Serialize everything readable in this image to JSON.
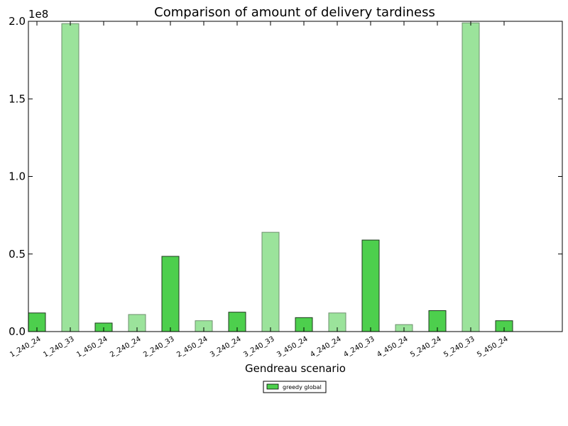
{
  "chart_data": {
    "type": "bar",
    "title": "Comparison of amount of delivery tardiness",
    "xlabel": "Gendreau scenario",
    "ylabel": "",
    "offset_label": "1e8",
    "scale": 100000000,
    "ylim": [
      0,
      2.0
    ],
    "yticks": [
      "0.0",
      "0.5",
      "1.0",
      "1.5",
      "2.0"
    ],
    "categories": [
      "1_240_24",
      "1_240_33",
      "1_450_24",
      "2_240_24",
      "2_240_33",
      "2_450_24",
      "3_240_24",
      "3_240_33",
      "3_450_24",
      "4_240_24",
      "4_240_33",
      "4_450_24",
      "5_240_24",
      "5_240_33",
      "5_450_24"
    ],
    "values": [
      0.12,
      1.985,
      0.055,
      0.11,
      0.485,
      0.07,
      0.125,
      0.64,
      0.09,
      0.12,
      0.59,
      0.045,
      0.135,
      1.99,
      0.07
    ],
    "series": [
      {
        "name": "greedy global",
        "color": "#4dcf4d",
        "values": [
          0.12,
          1.985,
          0.055,
          0.11,
          0.485,
          0.07,
          0.125,
          0.64,
          0.09,
          0.12,
          0.59,
          0.045,
          0.135,
          1.99,
          0.07
        ]
      }
    ],
    "bar_colors": [
      "#4dcf4d",
      "#9be39b",
      "#4dcf4d",
      "#9be39b",
      "#4dcf4d",
      "#9be39b",
      "#4dcf4d",
      "#9be39b",
      "#4dcf4d",
      "#9be39b",
      "#4dcf4d",
      "#9be39b",
      "#4dcf4d",
      "#9be39b",
      "#4dcf4d"
    ],
    "grid": false,
    "legend": {
      "placement": "bottom-center",
      "entries": [
        "greedy global"
      ]
    }
  }
}
